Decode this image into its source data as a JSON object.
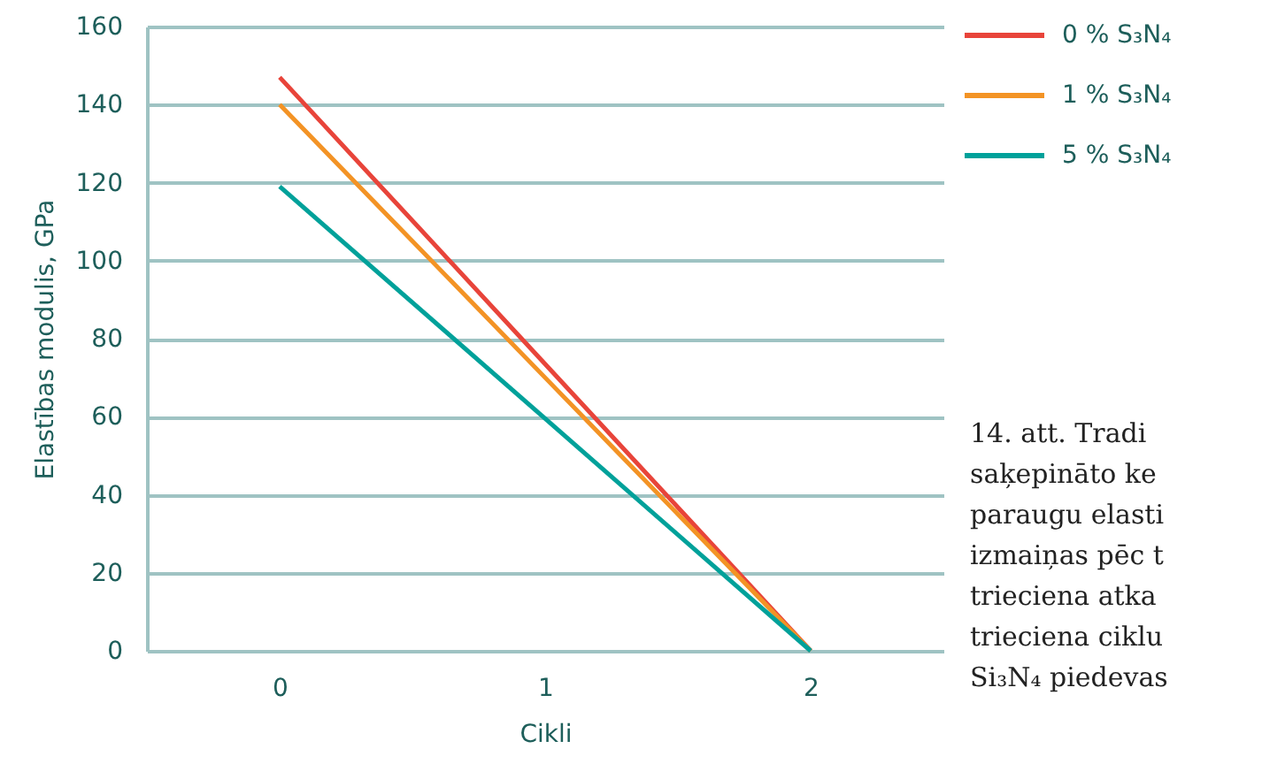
{
  "chart_data": {
    "type": "line",
    "xlabel": "Cikli",
    "ylabel": "Elastības modulis, GPa",
    "categories": [
      "0",
      "1",
      "2"
    ],
    "series": [
      {
        "name": "0 % S₃N₄",
        "color": "#e8443a",
        "values": [
          147,
          73.5,
          0
        ]
      },
      {
        "name": "1 % S₃N₄",
        "color": "#f39325",
        "values": [
          140,
          70,
          0
        ]
      },
      {
        "name": "5 % S₃N₄",
        "color": "#00a19a",
        "values": [
          119,
          59.5,
          0
        ]
      }
    ],
    "ylim": [
      0,
      160
    ],
    "yticks": [
      0,
      20,
      40,
      60,
      80,
      100,
      120,
      140,
      160
    ],
    "grid": "y",
    "legend": "top right",
    "marker": "none",
    "line_style": "solid",
    "annotations": [
      "14. att. Tradi",
      "saķepināto ke",
      "paraugu elasti",
      "izmaiņas pēc t",
      "trieciena atka",
      "trieciena ciklu",
      "Si₃N₄ piedevas"
    ]
  }
}
